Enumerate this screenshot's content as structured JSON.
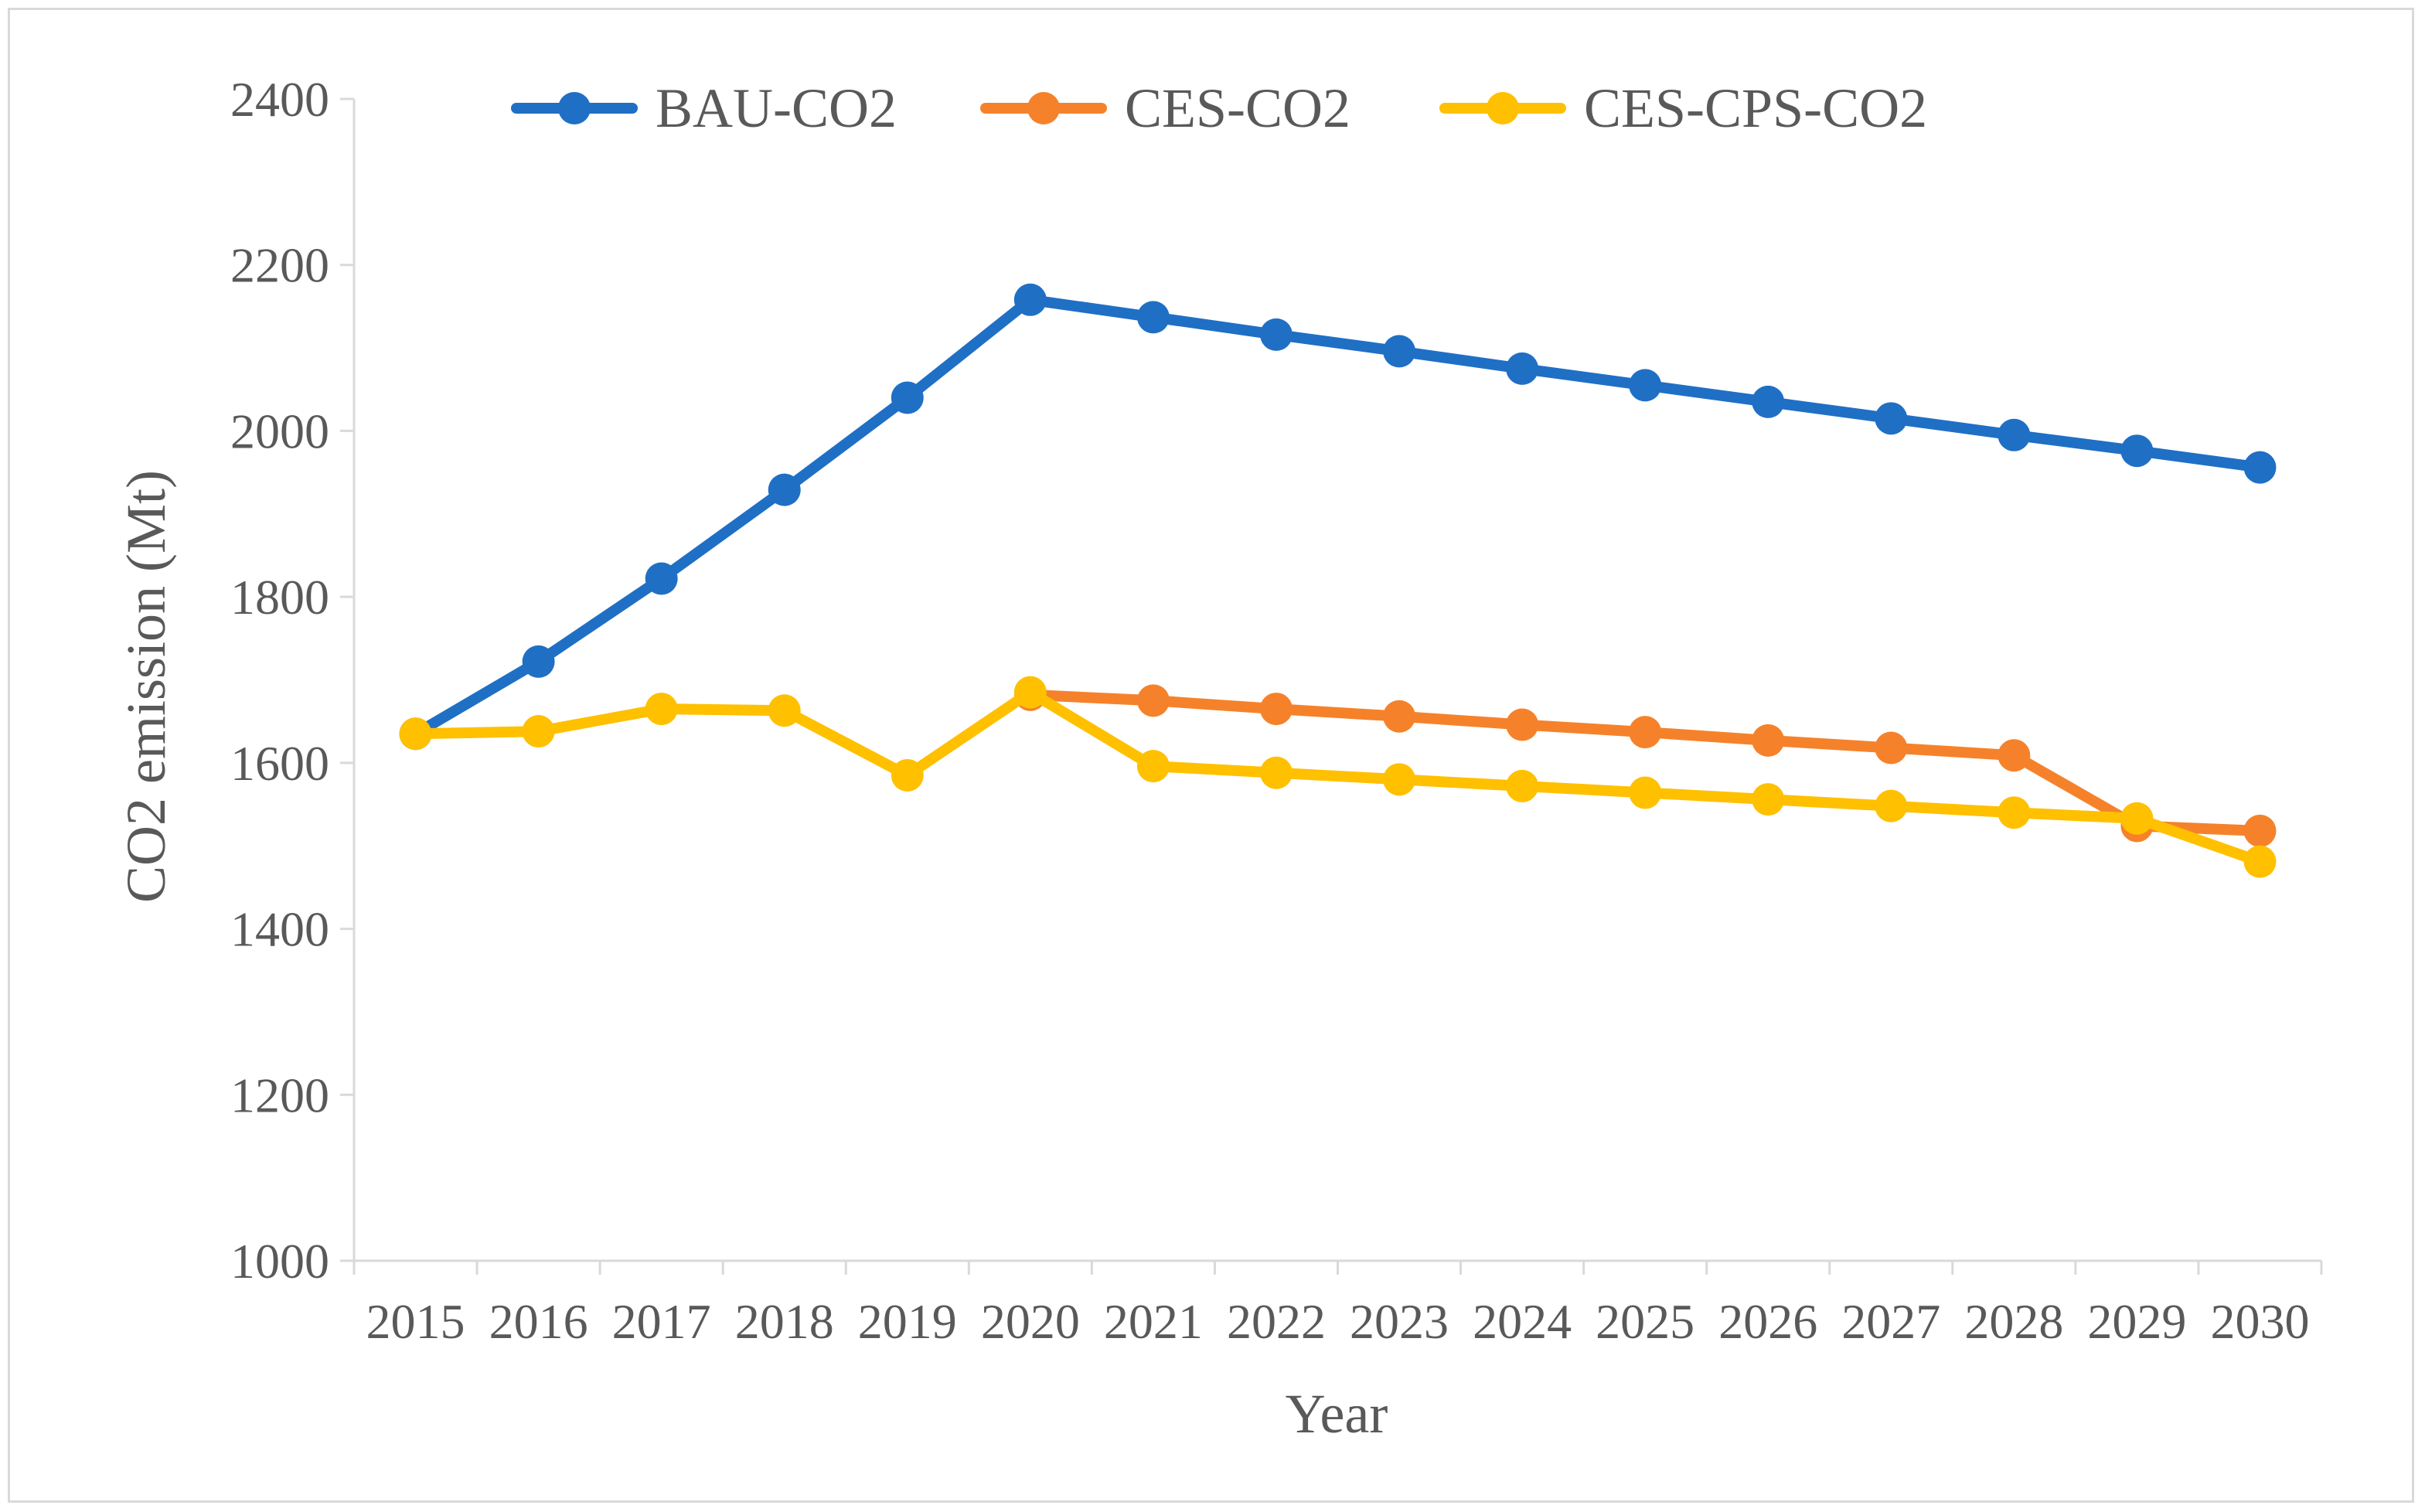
{
  "chart_data": {
    "type": "line",
    "title": "",
    "xlabel": "Year",
    "ylabel": "CO2 emission (Mt)",
    "ylim": [
      1000,
      2400
    ],
    "y_ticks": [
      "1000",
      "1200",
      "1400",
      "1600",
      "1800",
      "2000",
      "2200",
      "2400"
    ],
    "categories": [
      "2015",
      "2016",
      "2017",
      "2018",
      "2019",
      "2020",
      "2021",
      "2022",
      "2023",
      "2024",
      "2025",
      "2026",
      "2027",
      "2028",
      "2029",
      "2030"
    ],
    "grid": false,
    "legend_position": "top",
    "series": [
      {
        "name": "BAU-CO2",
        "color": "#1f6fc5",
        "values": [
          1635,
          1722,
          1822,
          1929,
          2040,
          2158,
          2137,
          2116,
          2096,
          2075,
          2055,
          2035,
          2015,
          1995,
          1976,
          1956
        ]
      },
      {
        "name": "CES-CO2",
        "color": "#f5822a",
        "values": [
          null,
          null,
          null,
          null,
          null,
          1682,
          1675,
          1665,
          1656,
          1646,
          1637,
          1627,
          1618,
          1609,
          1524,
          1518
        ]
      },
      {
        "name": "CES-CPS-CO2",
        "color": "#ffc000",
        "values": [
          1635,
          1638,
          1665,
          1663,
          1585,
          1685,
          1596,
          1588,
          1580,
          1572,
          1564,
          1556,
          1548,
          1540,
          1533,
          1481
        ]
      }
    ]
  }
}
